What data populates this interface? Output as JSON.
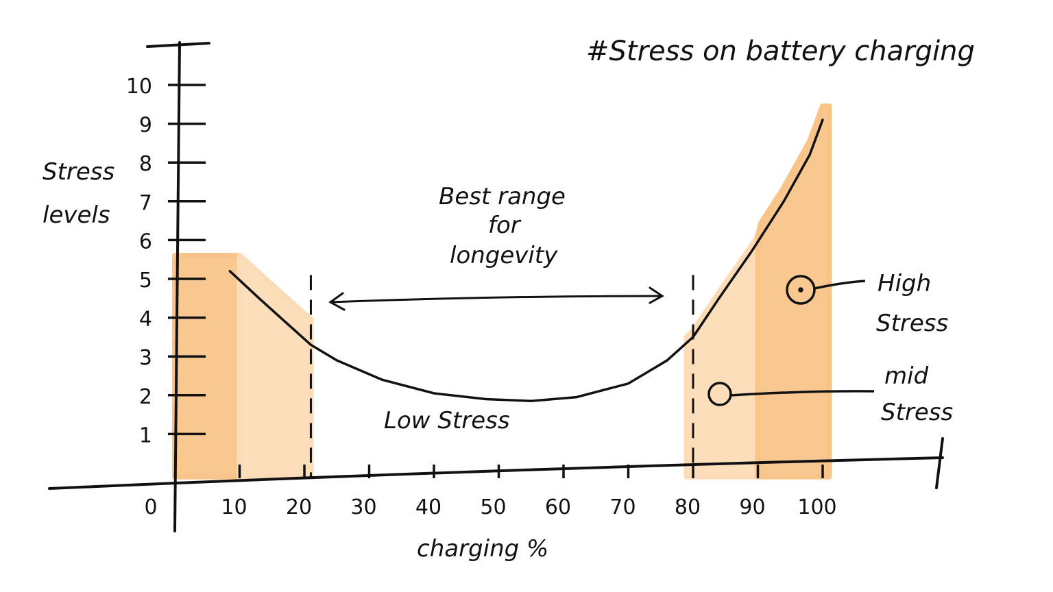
{
  "chart_data": {
    "type": "line",
    "title": "#Stress on battery charging",
    "xlabel": "charging %",
    "ylabel": [
      "Stress",
      "levels"
    ],
    "xlim": [
      0,
      100
    ],
    "ylim": [
      0,
      10
    ],
    "x_ticks": [
      0,
      10,
      20,
      30,
      40,
      50,
      60,
      70,
      80,
      90,
      100
    ],
    "y_ticks": [
      1,
      2,
      3,
      4,
      5,
      6,
      7,
      8,
      9,
      10
    ],
    "grid": false,
    "series": [
      {
        "name": "stress curve",
        "x": [
          8.5,
          13,
          17,
          21,
          25,
          32,
          40,
          48,
          55,
          62,
          70,
          76,
          80,
          84,
          89,
          94,
          98,
          100
        ],
        "y": [
          5.2,
          4.5,
          3.9,
          3.3,
          2.9,
          2.4,
          2.05,
          1.9,
          1.85,
          1.95,
          2.3,
          2.9,
          3.5,
          4.5,
          5.7,
          7.0,
          8.2,
          9.1
        ]
      }
    ],
    "regions": [
      {
        "name": "high-left",
        "x": [
          0,
          10
        ],
        "level": "high",
        "color": "#f9c48a"
      },
      {
        "name": "mid-left",
        "x": [
          10,
          21
        ],
        "level": "mid",
        "color": "#fcdcb6"
      },
      {
        "name": "mid-right",
        "x": [
          79,
          90
        ],
        "level": "mid",
        "color": "#fcdcb6"
      },
      {
        "name": "high-right",
        "x": [
          90,
          101
        ],
        "level": "high",
        "color": "#f9c48a"
      }
    ],
    "boundaries": [
      21,
      80
    ],
    "annotations": {
      "best_range": [
        "Best range",
        "for",
        "longevity"
      ],
      "low": "Low Stress",
      "high": [
        "High",
        "Stress"
      ],
      "mid": [
        "mid",
        "Stress"
      ]
    }
  }
}
